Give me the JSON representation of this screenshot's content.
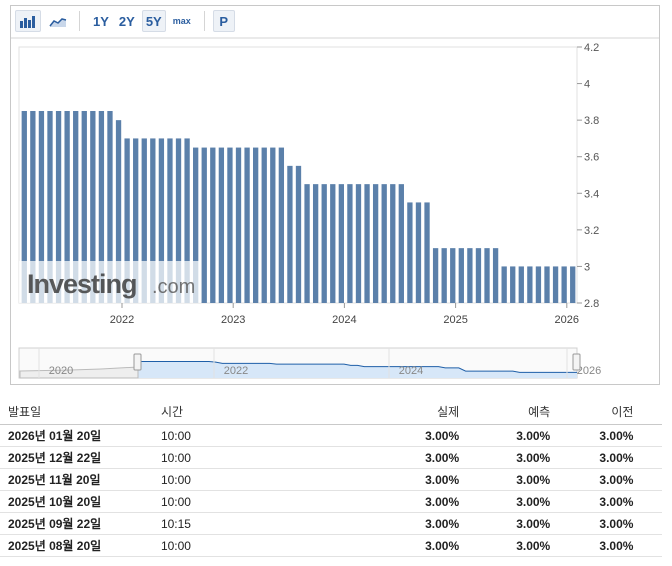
{
  "toolbar": {
    "icons": [
      "bar-chart-icon",
      "area-chart-icon"
    ],
    "ranges": [
      "1Y",
      "2Y",
      "5Y",
      "max"
    ],
    "active_range": "5Y",
    "p_label": "P"
  },
  "watermark": {
    "main": "Investing",
    "suffix": ".com"
  },
  "colors": {
    "bar": "#5b80aa",
    "navigator_fill": "#d7e7f8",
    "navigator_line": "#1f5fa8",
    "link": "#2a5d9f"
  },
  "chart_data": {
    "type": "bar",
    "x_ticks": [
      "2022",
      "2023",
      "2024",
      "2025",
      "2026"
    ],
    "y_ticks": [
      "2.8",
      "3",
      "3.2",
      "3.4",
      "3.6",
      "3.8",
      "4",
      "4.2"
    ],
    "ylim": [
      2.8,
      4.2
    ],
    "grid": false,
    "bars_note_free": true,
    "values": [
      3.85,
      3.85,
      3.85,
      3.85,
      3.85,
      3.85,
      3.85,
      3.85,
      3.85,
      3.85,
      3.85,
      3.8,
      3.7,
      3.7,
      3.7,
      3.7,
      3.7,
      3.7,
      3.7,
      3.7,
      3.65,
      3.65,
      3.65,
      3.65,
      3.65,
      3.65,
      3.65,
      3.65,
      3.65,
      3.65,
      3.65,
      3.55,
      3.55,
      3.45,
      3.45,
      3.45,
      3.45,
      3.45,
      3.45,
      3.45,
      3.45,
      3.45,
      3.45,
      3.45,
      3.45,
      3.35,
      3.35,
      3.35,
      3.1,
      3.1,
      3.1,
      3.1,
      3.1,
      3.1,
      3.1,
      3.1,
      3.0,
      3.0,
      3.0,
      3.0,
      3.0,
      3.0,
      3.0,
      3.0,
      3.0
    ],
    "navigator_ticks": [
      "2020",
      "2022",
      "2024",
      "2026"
    ]
  },
  "table": {
    "headers": {
      "date": "발표일",
      "time": "시간",
      "actual": "실제",
      "forecast": "예측",
      "previous": "이전"
    },
    "rows": [
      {
        "date": "2026년 01월 20일",
        "time": "10:00",
        "actual": "3.00%",
        "forecast": "3.00%",
        "previous": "3.00%"
      },
      {
        "date": "2025년 12월 22일",
        "time": "10:00",
        "actual": "3.00%",
        "forecast": "3.00%",
        "previous": "3.00%"
      },
      {
        "date": "2025년 11월 20일",
        "time": "10:00",
        "actual": "3.00%",
        "forecast": "3.00%",
        "previous": "3.00%"
      },
      {
        "date": "2025년 10월 20일",
        "time": "10:00",
        "actual": "3.00%",
        "forecast": "3.00%",
        "previous": "3.00%"
      },
      {
        "date": "2025년 09월 22일",
        "time": "10:15",
        "actual": "3.00%",
        "forecast": "3.00%",
        "previous": "3.00%"
      },
      {
        "date": "2025년 08월 20일",
        "time": "10:00",
        "actual": "3.00%",
        "forecast": "3.00%",
        "previous": "3.00%"
      }
    ]
  }
}
